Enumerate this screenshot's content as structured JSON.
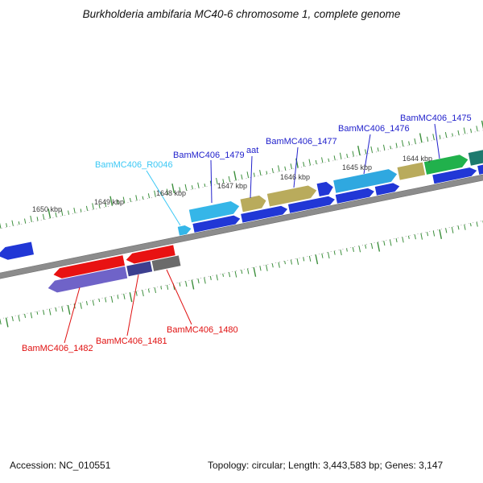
{
  "title": "Burkholderia ambifaria MC40-6 chromosome 1, complete genome",
  "status_bar": {
    "accession": "Accession: NC_010551",
    "summary": "Topology: circular; Length: 3,443,583 bp; Genes: 3,147"
  },
  "ruler": {
    "unit_labels": [
      "1650 kbp",
      "1649 kbp",
      "1648 kbp",
      "1647 kbp",
      "1646 kbp",
      "1645 kbp",
      "1644 kbp"
    ]
  },
  "gene_labels": {
    "forward": [
      "BamMC406_1479",
      "aat",
      "BamMC406_1477",
      "BamMC406_1476",
      "BamMC406_1475"
    ],
    "rna": "BamMC406_R0046",
    "reverse": [
      "BamMC406_1480",
      "BamMC406_1481",
      "BamMC406_1482"
    ]
  },
  "colors": {
    "forward_cds": "#2137d6",
    "outer_cyan": "#35b6e8",
    "outer_khaki": "#b9ab5c",
    "outer_sky": "#2fa8e0",
    "outer_green": "#21b14c",
    "teal_block": "#1d7a6e",
    "reverse_red": "#e81212",
    "reverse_purple": "#6f63c8",
    "reverse_navy": "#3c3f8f",
    "reverse_gray": "#6b6b6b",
    "axis_gray": "#8c8c8c",
    "tick_green": "#3c8f3c",
    "label_blue": "#2222cc",
    "label_cyan": "#3bc8f5",
    "label_red": "#e01010"
  }
}
